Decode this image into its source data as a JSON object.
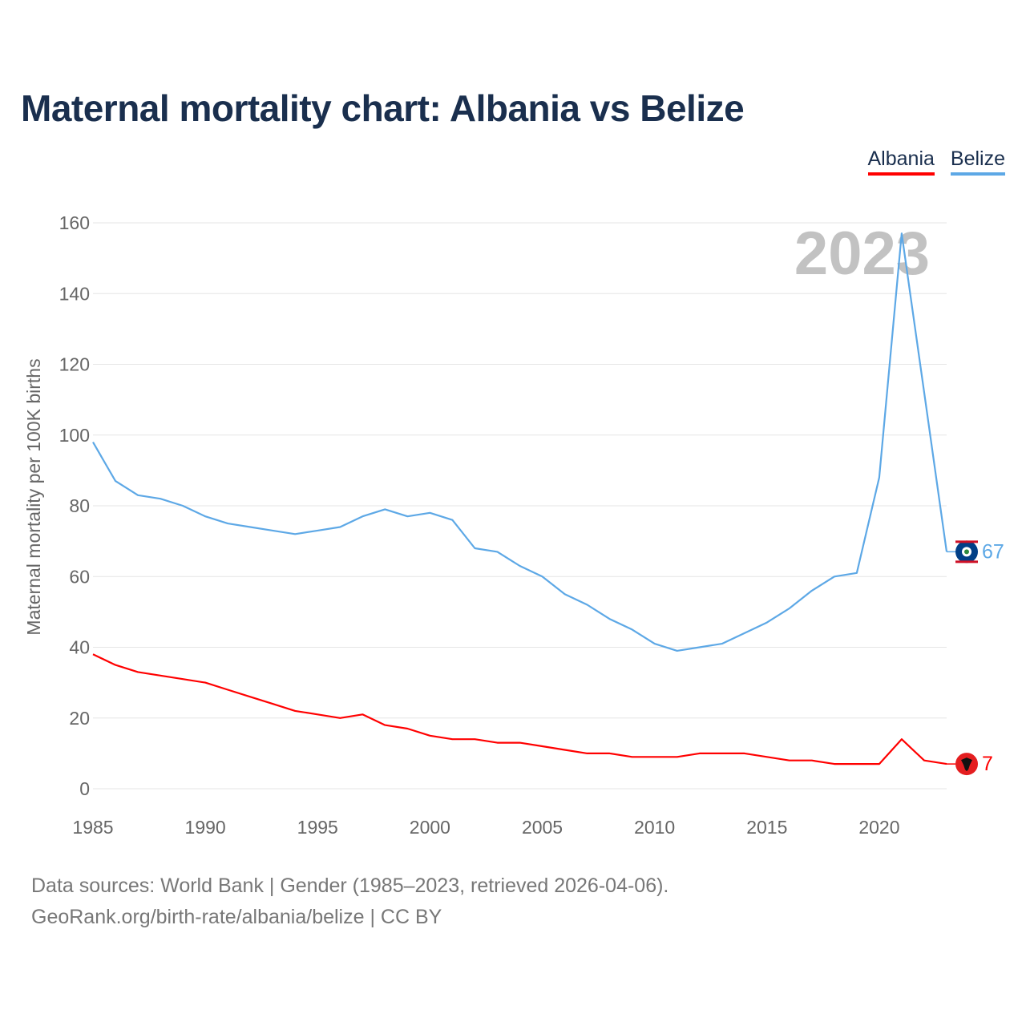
{
  "title": "Maternal mortality chart: Albania vs Belize",
  "legend": [
    {
      "label": "Albania",
      "color": "#ff0000"
    },
    {
      "label": "Belize",
      "color": "#5da8e6"
    }
  ],
  "source": {
    "line1": "Data sources: World Bank | Gender (1985–2023, retrieved 2026-04-06).",
    "line2": "GeoRank.org/birth-rate/albania/belize | CC BY"
  },
  "chart_data": {
    "type": "line",
    "title": "Maternal mortality chart: Albania vs Belize",
    "ylabel": "Maternal mortality per 100K births",
    "xlabel": "",
    "year_watermark": "2023",
    "xlim": [
      1985,
      2023
    ],
    "ylim": [
      0,
      160
    ],
    "x_ticks": [
      1985,
      1990,
      1995,
      2000,
      2005,
      2010,
      2015,
      2020
    ],
    "y_ticks": [
      0,
      20,
      40,
      60,
      80,
      100,
      120,
      140,
      160
    ],
    "grid": true,
    "x": [
      1985,
      1986,
      1987,
      1988,
      1989,
      1990,
      1991,
      1992,
      1993,
      1994,
      1995,
      1996,
      1997,
      1998,
      1999,
      2000,
      2001,
      2002,
      2003,
      2004,
      2005,
      2006,
      2007,
      2008,
      2009,
      2010,
      2011,
      2012,
      2013,
      2014,
      2015,
      2016,
      2017,
      2018,
      2019,
      2020,
      2021,
      2022,
      2023
    ],
    "series": [
      {
        "name": "Belize",
        "color": "#5da8e6",
        "end_label": "67",
        "values": [
          98,
          87,
          83,
          82,
          80,
          77,
          75,
          74,
          73,
          72,
          73,
          74,
          77,
          79,
          77,
          78,
          76,
          68,
          67,
          63,
          60,
          55,
          52,
          48,
          45,
          41,
          39,
          40,
          41,
          44,
          47,
          51,
          56,
          60,
          61,
          88,
          157,
          112,
          67
        ]
      },
      {
        "name": "Albania",
        "color": "#ff0000",
        "end_label": "7",
        "values": [
          38,
          35,
          33,
          32,
          31,
          30,
          28,
          26,
          24,
          22,
          21,
          20,
          21,
          18,
          17,
          15,
          14,
          14,
          13,
          13,
          12,
          11,
          10,
          10,
          9,
          9,
          9,
          10,
          10,
          10,
          9,
          8,
          8,
          7,
          7,
          7,
          14,
          8,
          7
        ]
      }
    ]
  }
}
